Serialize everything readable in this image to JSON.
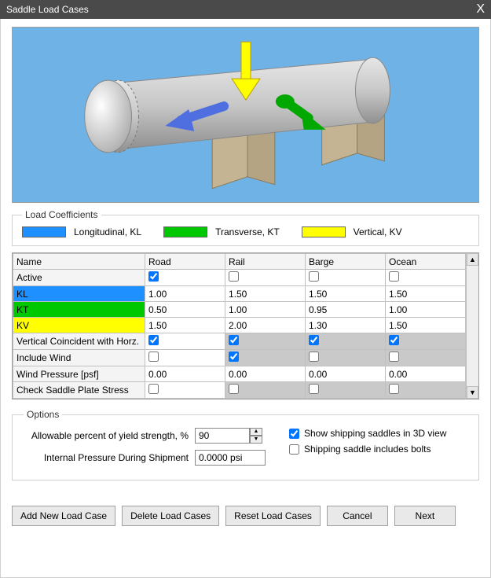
{
  "window": {
    "title": "Saddle Load Cases",
    "close": "X"
  },
  "legend": {
    "title": "Load Coefficients",
    "items": [
      {
        "label": "Longitudinal, KL",
        "color": "#1e90ff"
      },
      {
        "label": "Transverse, KT",
        "color": "#00c800"
      },
      {
        "label": "Vertical, KV",
        "color": "#ffff00"
      }
    ]
  },
  "preview": {
    "background": "#6fb3e6",
    "vessel_color": "#c8c8c8",
    "vessel_highlight": "#e6e6e6",
    "saddle_color": "#c4b494",
    "arrows": {
      "vertical_color": "#ffff00",
      "longitudinal_color": "#4f6fe0",
      "transverse_color": "#00a800"
    }
  },
  "table": {
    "headers": [
      "Name",
      "Road",
      "Rail",
      "Barge",
      "Ocean"
    ],
    "rows": [
      {
        "label": "Active",
        "type": "check",
        "values": [
          true,
          false,
          false,
          false
        ],
        "grey": []
      },
      {
        "label": "KL",
        "class": "kl-row",
        "type": "text",
        "values": [
          "1.00",
          "1.50",
          "1.50",
          "1.50"
        ]
      },
      {
        "label": "KT",
        "class": "kt-row",
        "type": "text",
        "values": [
          "0.50",
          "1.00",
          "0.95",
          "1.00"
        ]
      },
      {
        "label": "KV",
        "class": "kv-row",
        "type": "text",
        "values": [
          "1.50",
          "2.00",
          "1.30",
          "1.50"
        ]
      },
      {
        "label": "Vertical Coincident with Horz.",
        "type": "check",
        "values": [
          true,
          true,
          true,
          true
        ],
        "grey": [
          1,
          2,
          3
        ]
      },
      {
        "label": "Include Wind",
        "type": "check",
        "values": [
          false,
          true,
          false,
          false
        ],
        "grey": [
          1,
          2,
          3
        ]
      },
      {
        "label": "Wind Pressure  [psf]",
        "type": "text",
        "values": [
          "0.00",
          "0.00",
          "0.00",
          "0.00"
        ]
      },
      {
        "label": "Check Saddle Plate Stress",
        "type": "check",
        "values": [
          false,
          false,
          false,
          false
        ],
        "grey": [
          1,
          2,
          3
        ]
      }
    ]
  },
  "options": {
    "title": "Options",
    "yield_label": "Allowable percent of yield strength, %",
    "yield_value": "90",
    "pressure_label": "Internal Pressure During Shipment",
    "pressure_value": "0.0000 psi",
    "show3d_label": "Show shipping saddles in 3D view",
    "show3d_checked": true,
    "bolts_label": "Shipping saddle includes bolts",
    "bolts_checked": false
  },
  "buttons": {
    "add": "Add New Load Case",
    "delete": "Delete Load Cases",
    "reset": "Reset Load Cases",
    "cancel": "Cancel",
    "next": "Next"
  }
}
